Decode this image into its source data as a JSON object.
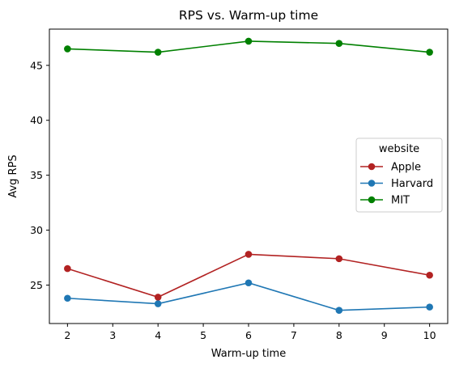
{
  "chart_data": {
    "type": "line",
    "title": "RPS vs. Warm-up time",
    "xlabel": "Warm-up time",
    "ylabel": "Avg RPS",
    "x": [
      2,
      4,
      6,
      8,
      10
    ],
    "xlim": [
      1.6,
      10.4
    ],
    "ylim": [
      21.5,
      48.3
    ],
    "xticks": [
      2,
      3,
      4,
      5,
      6,
      7,
      8,
      9,
      10
    ],
    "yticks": [
      25,
      30,
      35,
      40,
      45
    ],
    "grid": false,
    "legend": {
      "title": "website",
      "placement": "center-right"
    },
    "series": [
      {
        "name": "Apple",
        "color": "#b22222",
        "values": [
          26.5,
          23.9,
          27.8,
          27.4,
          25.9
        ]
      },
      {
        "name": "Harvard",
        "color": "#1f77b4",
        "values": [
          23.8,
          23.3,
          25.2,
          22.7,
          23.0
        ]
      },
      {
        "name": "MIT",
        "color": "#008000",
        "values": [
          46.5,
          46.2,
          47.2,
          47.0,
          46.2
        ]
      }
    ]
  }
}
